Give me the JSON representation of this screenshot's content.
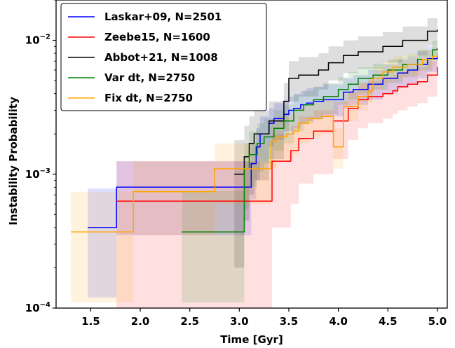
{
  "chart_data": {
    "type": "line",
    "title": "",
    "xlabel": "Time [Gyr]",
    "ylabel": "Instability Probability",
    "xlim": [
      1.15,
      5.1
    ],
    "ylim": [
      0.0001,
      0.02
    ],
    "yscale": "log",
    "grid": false,
    "legend_position": "top-left",
    "x_ticks": [
      1.5,
      2.0,
      2.5,
      3.0,
      3.5,
      4.0,
      4.5,
      5.0
    ],
    "x_tick_labels": [
      "1.5",
      "2.0",
      "2.5",
      "3.0",
      "3.5",
      "4.0",
      "4.5",
      "5.0"
    ],
    "y_ticks": [
      0.0001,
      0.001,
      0.01
    ],
    "y_tick_labels": [
      {
        "base": "10",
        "exp": "−4"
      },
      {
        "base": "10",
        "exp": "−3"
      },
      {
        "base": "10",
        "exp": "−2"
      }
    ],
    "series": [
      {
        "name": "Laskar+09, N=2501",
        "color": "#0000ff",
        "band_opacity": 0.13,
        "x": [
          1.47,
          1.76,
          3.12,
          3.17,
          3.21,
          3.3,
          3.35,
          3.45,
          3.5,
          3.55,
          3.62,
          3.68,
          3.75,
          3.85,
          4.05,
          4.15,
          4.3,
          4.45,
          4.6,
          4.7,
          4.8,
          4.9,
          5.0
        ],
        "y": [
          0.0004,
          0.0008,
          0.0012,
          0.0016,
          0.002,
          0.0024,
          0.0026,
          0.0028,
          0.003,
          0.0031,
          0.0033,
          0.0034,
          0.0035,
          0.0036,
          0.0041,
          0.0043,
          0.0047,
          0.0052,
          0.0057,
          0.006,
          0.0066,
          0.0073,
          0.0075
        ],
        "upper": [
          0.00078,
          0.00125,
          0.0017,
          0.0022,
          0.0027,
          0.0031,
          0.0034,
          0.0036,
          0.0038,
          0.004,
          0.0042,
          0.0044,
          0.0045,
          0.0047,
          0.0052,
          0.0055,
          0.006,
          0.0066,
          0.0072,
          0.0076,
          0.0083,
          0.009,
          0.0092
        ],
        "lower": [
          0.00012,
          0.00035,
          0.00065,
          0.0009,
          0.00125,
          0.0016,
          0.0018,
          0.00195,
          0.0021,
          0.0022,
          0.0024,
          0.0025,
          0.0026,
          0.0027,
          0.0031,
          0.0033,
          0.0036,
          0.004,
          0.0044,
          0.0047,
          0.0052,
          0.0058,
          0.006
        ]
      },
      {
        "name": "Zeebe15, N=1600",
        "color": "#ff0000",
        "band_opacity": 0.12,
        "x": [
          1.76,
          3.33,
          3.52,
          3.6,
          3.75,
          3.95,
          4.1,
          4.2,
          4.3,
          4.45,
          4.55,
          4.6,
          4.7,
          4.8,
          4.9,
          5.0
        ],
        "y": [
          0.00063,
          0.00125,
          0.0015,
          0.00185,
          0.0021,
          0.0025,
          0.0031,
          0.0036,
          0.0038,
          0.004,
          0.0042,
          0.0045,
          0.0047,
          0.0049,
          0.0055,
          0.0063
        ],
        "upper": [
          0.00125,
          0.002,
          0.0023,
          0.0027,
          0.003,
          0.0035,
          0.0042,
          0.0048,
          0.005,
          0.0053,
          0.0055,
          0.0058,
          0.006,
          0.0063,
          0.007,
          0.0078
        ],
        "lower": [
          0.0001,
          0.0004,
          0.0006,
          0.00085,
          0.001,
          0.0013,
          0.0018,
          0.0022,
          0.0024,
          0.0026,
          0.0028,
          0.003,
          0.0032,
          0.0034,
          0.0038,
          0.0044
        ]
      },
      {
        "name": "Abbot+21, N=1008",
        "color": "#000000",
        "band_opacity": 0.13,
        "x": [
          2.95,
          3.05,
          3.1,
          3.15,
          3.3,
          3.45,
          3.5,
          3.6,
          3.8,
          3.9,
          4.05,
          4.2,
          4.45,
          4.65,
          4.9,
          5.0
        ],
        "y": [
          0.001,
          0.00135,
          0.0017,
          0.002,
          0.0025,
          0.0035,
          0.0052,
          0.0055,
          0.006,
          0.0068,
          0.0077,
          0.0082,
          0.009,
          0.01,
          0.0117,
          0.012
        ],
        "upper": [
          0.0018,
          0.0023,
          0.0027,
          0.003,
          0.0035,
          0.0048,
          0.007,
          0.0075,
          0.008,
          0.009,
          0.01,
          0.0107,
          0.0115,
          0.0127,
          0.0146,
          0.015
        ],
        "lower": [
          0.0002,
          0.00045,
          0.0007,
          0.0009,
          0.0013,
          0.0021,
          0.0035,
          0.0038,
          0.0043,
          0.005,
          0.0057,
          0.0061,
          0.0068,
          0.0077,
          0.0091,
          0.0094
        ]
      },
      {
        "name": "Var dt, N=2750",
        "color": "#008000",
        "band_opacity": 0.12,
        "x": [
          2.42,
          3.05,
          3.1,
          3.18,
          3.25,
          3.35,
          3.45,
          3.55,
          3.65,
          3.75,
          3.85,
          4.0,
          4.1,
          4.2,
          4.35,
          4.5,
          4.65,
          4.8,
          4.95,
          5.0
        ],
        "y": [
          0.00037,
          0.0011,
          0.0014,
          0.0017,
          0.0019,
          0.0022,
          0.0025,
          0.003,
          0.0033,
          0.0036,
          0.0038,
          0.0043,
          0.0047,
          0.0052,
          0.0055,
          0.006,
          0.0066,
          0.0072,
          0.0085,
          0.0087
        ],
        "upper": [
          0.00075,
          0.0017,
          0.0021,
          0.0024,
          0.0026,
          0.003,
          0.0033,
          0.0039,
          0.0042,
          0.0045,
          0.0048,
          0.0053,
          0.0058,
          0.0063,
          0.0067,
          0.0072,
          0.0078,
          0.0085,
          0.0099,
          0.0101
        ],
        "lower": [
          0.00011,
          0.00055,
          0.0008,
          0.00105,
          0.0012,
          0.0015,
          0.0017,
          0.0021,
          0.0024,
          0.0026,
          0.0028,
          0.0033,
          0.0036,
          0.004,
          0.0043,
          0.0048,
          0.0053,
          0.0059,
          0.0071,
          0.0073
        ]
      },
      {
        "name": "Fix dt, N=2750",
        "color": "#ffa500",
        "band_opacity": 0.13,
        "x": [
          1.3,
          1.93,
          2.75,
          3.32,
          3.38,
          3.48,
          3.55,
          3.6,
          3.7,
          3.83,
          3.95,
          4.05,
          4.2,
          4.3,
          4.35,
          4.45,
          4.55,
          4.7,
          4.85,
          4.95,
          5.0
        ],
        "y": [
          0.00037,
          0.00074,
          0.0011,
          0.00175,
          0.0019,
          0.002,
          0.0021,
          0.0024,
          0.0026,
          0.0027,
          0.0016,
          0.0032,
          0.0038,
          0.0042,
          0.0052,
          0.0058,
          0.0063,
          0.0066,
          0.0072,
          0.0076,
          0.0082
        ],
        "upper": [
          0.00074,
          0.00125,
          0.0017,
          0.0025,
          0.0027,
          0.0028,
          0.0029,
          0.0032,
          0.0034,
          0.0036,
          0.0022,
          0.0041,
          0.0048,
          0.0052,
          0.0063,
          0.007,
          0.0076,
          0.0079,
          0.0085,
          0.009,
          0.0097
        ],
        "lower": [
          0.00011,
          0.00035,
          0.0006,
          0.0011,
          0.00125,
          0.0013,
          0.0014,
          0.0017,
          0.0019,
          0.002,
          0.0011,
          0.0025,
          0.003,
          0.0034,
          0.0043,
          0.0048,
          0.0052,
          0.0055,
          0.0061,
          0.0065,
          0.007
        ]
      }
    ]
  }
}
